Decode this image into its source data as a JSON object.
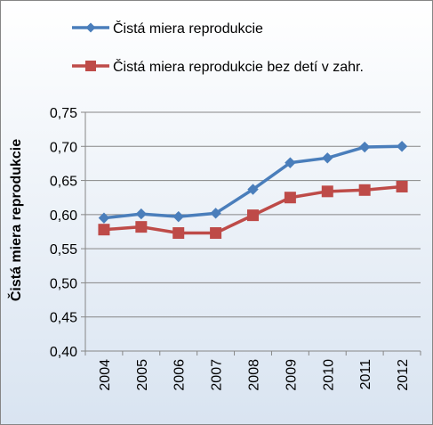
{
  "chart_data": {
    "type": "line",
    "title": "",
    "xlabel": "",
    "ylabel": "Čistá miera reprodukcie",
    "categories": [
      "2004",
      "2005",
      "2006",
      "2007",
      "2008",
      "2009",
      "2010",
      "2011",
      "2012"
    ],
    "ylim": [
      0.4,
      0.75
    ],
    "yticks": [
      "0,40",
      "0,45",
      "0,50",
      "0,55",
      "0,60",
      "0,65",
      "0,70",
      "0,75"
    ],
    "grid": true,
    "legend": "top",
    "series": [
      {
        "name": "Čistá miera reprodukcie",
        "color": "#4a7ebb",
        "marker": "diamond",
        "values": [
          0.595,
          0.601,
          0.597,
          0.602,
          0.637,
          0.676,
          0.683,
          0.699,
          0.7
        ]
      },
      {
        "name": "Čistá miera reprodukcie bez detí v zahr.",
        "color": "#be4b48",
        "marker": "square",
        "values": [
          0.578,
          0.582,
          0.573,
          0.573,
          0.599,
          0.625,
          0.634,
          0.636,
          0.641
        ]
      }
    ]
  }
}
